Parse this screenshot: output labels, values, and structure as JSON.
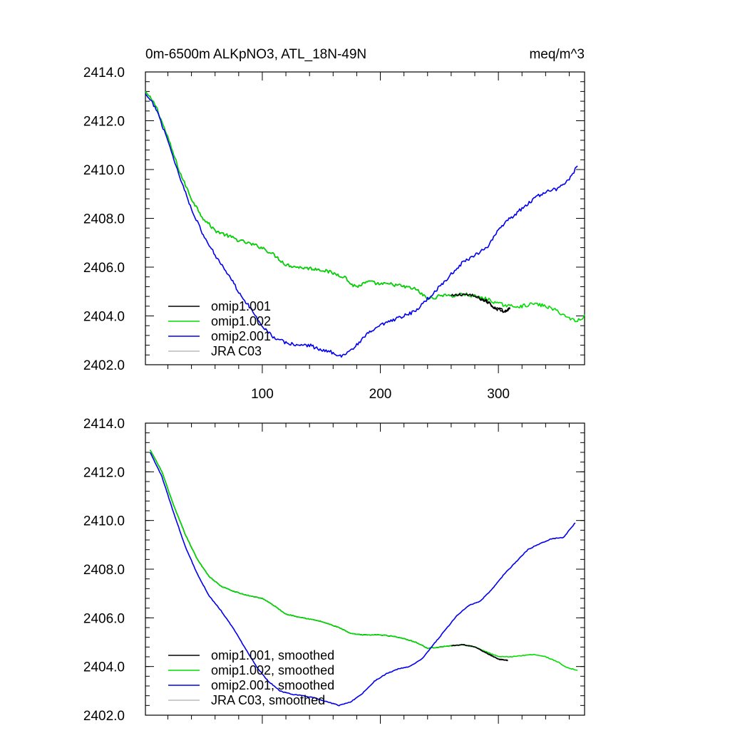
{
  "figure": {
    "title_left": "0m-6500m ALKpNO3, ATL_18N-49N",
    "title_right": "meq/m^3"
  },
  "chart_data": [
    {
      "type": "line",
      "title": "0m-6500m ALKpNO3, ATL_18N-49N",
      "units": "meq/m^3",
      "xlim": [
        1,
        373
      ],
      "ylim": [
        2402.0,
        2414.0
      ],
      "xticks": [
        100,
        200,
        300
      ],
      "xtick_labels": [
        "100",
        "200",
        "300"
      ],
      "yticks": [
        2402,
        2404,
        2406,
        2408,
        2410,
        2412,
        2414
      ],
      "ytick_labels": [
        "2402.0",
        "2404.0",
        "2406.0",
        "2408.0",
        "2410.0",
        "2412.0",
        "2414.0"
      ],
      "legend_position": "bottom-left",
      "series": [
        {
          "name": "omip1.001",
          "color": "#000000",
          "noise": 0.07,
          "points": [
            [
              1,
              2413.2
            ],
            [
              10,
              2412.6
            ],
            [
              20,
              2411.3
            ],
            [
              30,
              2409.9
            ],
            [
              40,
              2408.8
            ],
            [
              50,
              2408.0
            ],
            [
              60,
              2407.5
            ],
            [
              70,
              2407.3
            ],
            [
              80,
              2407.1
            ],
            [
              100,
              2406.8
            ],
            [
              110,
              2406.5
            ],
            [
              120,
              2406.1
            ],
            [
              130,
              2406.0
            ],
            [
              150,
              2405.9
            ],
            [
              170,
              2405.6
            ],
            [
              175,
              2405.3
            ],
            [
              180,
              2405.2
            ],
            [
              190,
              2405.4
            ],
            [
              200,
              2405.3
            ],
            [
              210,
              2405.3
            ],
            [
              220,
              2405.2
            ],
            [
              230,
              2405.1
            ],
            [
              240,
              2404.7
            ],
            [
              250,
              2404.8
            ],
            [
              255,
              2404.9
            ],
            [
              260,
              2404.8
            ],
            [
              270,
              2404.9
            ],
            [
              280,
              2404.8
            ],
            [
              290,
              2404.6
            ],
            [
              298,
              2404.3
            ],
            [
              305,
              2404.2
            ],
            [
              310,
              2404.3
            ]
          ]
        },
        {
          "name": "omip1.002",
          "color": "#00dd00",
          "noise": 0.07,
          "points": [
            [
              1,
              2413.2
            ],
            [
              10,
              2412.6
            ],
            [
              20,
              2411.3
            ],
            [
              30,
              2409.9
            ],
            [
              40,
              2408.8
            ],
            [
              50,
              2408.0
            ],
            [
              60,
              2407.5
            ],
            [
              70,
              2407.3
            ],
            [
              80,
              2407.1
            ],
            [
              100,
              2406.8
            ],
            [
              110,
              2406.5
            ],
            [
              120,
              2406.1
            ],
            [
              130,
              2406.0
            ],
            [
              150,
              2405.9
            ],
            [
              170,
              2405.6
            ],
            [
              175,
              2405.3
            ],
            [
              180,
              2405.2
            ],
            [
              190,
              2405.4
            ],
            [
              200,
              2405.3
            ],
            [
              210,
              2405.3
            ],
            [
              220,
              2405.2
            ],
            [
              230,
              2405.1
            ],
            [
              240,
              2404.7
            ],
            [
              250,
              2404.8
            ],
            [
              255,
              2404.9
            ],
            [
              260,
              2404.8
            ],
            [
              270,
              2404.9
            ],
            [
              280,
              2404.8
            ],
            [
              290,
              2404.7
            ],
            [
              300,
              2404.5
            ],
            [
              310,
              2404.4
            ],
            [
              320,
              2404.4
            ],
            [
              330,
              2404.5
            ],
            [
              340,
              2404.4
            ],
            [
              350,
              2404.2
            ],
            [
              360,
              2403.9
            ],
            [
              367,
              2403.8
            ],
            [
              373,
              2404.0
            ]
          ]
        },
        {
          "name": "omip2.001",
          "color": "#0000ee",
          "noise": 0.07,
          "points": [
            [
              1,
              2413.1
            ],
            [
              10,
              2412.5
            ],
            [
              20,
              2411.2
            ],
            [
              30,
              2409.7
            ],
            [
              40,
              2408.4
            ],
            [
              50,
              2407.3
            ],
            [
              60,
              2406.5
            ],
            [
              70,
              2405.8
            ],
            [
              80,
              2405.0
            ],
            [
              90,
              2404.3
            ],
            [
              100,
              2403.6
            ],
            [
              110,
              2403.1
            ],
            [
              120,
              2402.9
            ],
            [
              130,
              2402.8
            ],
            [
              140,
              2402.8
            ],
            [
              150,
              2402.6
            ],
            [
              160,
              2402.5
            ],
            [
              167,
              2402.35
            ],
            [
              175,
              2402.6
            ],
            [
              180,
              2402.8
            ],
            [
              190,
              2403.3
            ],
            [
              200,
              2403.6
            ],
            [
              210,
              2403.8
            ],
            [
              220,
              2404.0
            ],
            [
              230,
              2404.2
            ],
            [
              240,
              2404.7
            ],
            [
              250,
              2405.2
            ],
            [
              260,
              2405.7
            ],
            [
              270,
              2406.2
            ],
            [
              280,
              2406.5
            ],
            [
              290,
              2406.8
            ],
            [
              300,
              2407.5
            ],
            [
              310,
              2408.0
            ],
            [
              320,
              2408.4
            ],
            [
              330,
              2408.8
            ],
            [
              340,
              2409.1
            ],
            [
              350,
              2409.2
            ],
            [
              360,
              2409.6
            ],
            [
              367,
              2410.15
            ]
          ]
        },
        {
          "name": "JRA C03",
          "color": "#bbbbbb",
          "noise": 0,
          "points": []
        }
      ]
    },
    {
      "type": "line",
      "title": "",
      "units": "meq/m^3",
      "xlim": [
        1,
        373
      ],
      "ylim": [
        2402.0,
        2414.0
      ],
      "xticks": [
        100,
        200,
        300
      ],
      "xtick_labels": [],
      "yticks": [
        2402,
        2404,
        2406,
        2408,
        2410,
        2412,
        2414
      ],
      "ytick_labels": [
        "2402.0",
        "2404.0",
        "2406.0",
        "2408.0",
        "2410.0",
        "2412.0",
        "2414.0"
      ],
      "legend_position": "bottom-left",
      "series": [
        {
          "name": "omip1.001, smoothed",
          "color": "#000000",
          "noise": 0.015,
          "points": [
            [
              5,
              2412.9
            ],
            [
              15,
              2412.0
            ],
            [
              25,
              2410.6
            ],
            [
              35,
              2409.4
            ],
            [
              45,
              2408.4
            ],
            [
              55,
              2407.7
            ],
            [
              65,
              2407.3
            ],
            [
              75,
              2407.1
            ],
            [
              85,
              2406.95
            ],
            [
              100,
              2406.8
            ],
            [
              110,
              2406.5
            ],
            [
              120,
              2406.15
            ],
            [
              130,
              2406.05
            ],
            [
              150,
              2405.85
            ],
            [
              165,
              2405.6
            ],
            [
              175,
              2405.35
            ],
            [
              185,
              2405.3
            ],
            [
              200,
              2405.3
            ],
            [
              210,
              2405.25
            ],
            [
              220,
              2405.15
            ],
            [
              230,
              2405.0
            ],
            [
              240,
              2404.75
            ],
            [
              250,
              2404.8
            ],
            [
              260,
              2404.85
            ],
            [
              270,
              2404.9
            ],
            [
              280,
              2404.8
            ],
            [
              290,
              2404.55
            ],
            [
              300,
              2404.3
            ],
            [
              308,
              2404.25
            ]
          ]
        },
        {
          "name": "omip1.002, smoothed",
          "color": "#00dd00",
          "noise": 0.015,
          "points": [
            [
              5,
              2412.9
            ],
            [
              15,
              2412.0
            ],
            [
              25,
              2410.6
            ],
            [
              35,
              2409.4
            ],
            [
              45,
              2408.4
            ],
            [
              55,
              2407.7
            ],
            [
              65,
              2407.3
            ],
            [
              75,
              2407.1
            ],
            [
              85,
              2406.95
            ],
            [
              100,
              2406.8
            ],
            [
              110,
              2406.5
            ],
            [
              120,
              2406.15
            ],
            [
              130,
              2406.05
            ],
            [
              150,
              2405.85
            ],
            [
              165,
              2405.6
            ],
            [
              175,
              2405.35
            ],
            [
              185,
              2405.3
            ],
            [
              200,
              2405.3
            ],
            [
              210,
              2405.25
            ],
            [
              220,
              2405.15
            ],
            [
              230,
              2405.0
            ],
            [
              240,
              2404.75
            ],
            [
              250,
              2404.8
            ],
            [
              260,
              2404.85
            ],
            [
              270,
              2404.9
            ],
            [
              280,
              2404.8
            ],
            [
              290,
              2404.6
            ],
            [
              300,
              2404.4
            ],
            [
              310,
              2404.4
            ],
            [
              320,
              2404.45
            ],
            [
              330,
              2404.5
            ],
            [
              340,
              2404.4
            ],
            [
              350,
              2404.2
            ],
            [
              358,
              2403.95
            ],
            [
              367,
              2403.85
            ]
          ]
        },
        {
          "name": "omip2.001, smoothed",
          "color": "#0000ee",
          "noise": 0.015,
          "points": [
            [
              5,
              2412.8
            ],
            [
              15,
              2411.8
            ],
            [
              25,
              2410.3
            ],
            [
              35,
              2408.9
            ],
            [
              45,
              2407.8
            ],
            [
              55,
              2406.9
            ],
            [
              65,
              2406.3
            ],
            [
              75,
              2405.6
            ],
            [
              85,
              2404.8
            ],
            [
              95,
              2404.0
            ],
            [
              105,
              2403.4
            ],
            [
              115,
              2403.0
            ],
            [
              125,
              2402.85
            ],
            [
              135,
              2402.8
            ],
            [
              145,
              2402.7
            ],
            [
              155,
              2402.55
            ],
            [
              165,
              2402.4
            ],
            [
              175,
              2402.55
            ],
            [
              185,
              2402.9
            ],
            [
              195,
              2403.4
            ],
            [
              205,
              2403.7
            ],
            [
              215,
              2403.9
            ],
            [
              225,
              2404.0
            ],
            [
              235,
              2404.3
            ],
            [
              245,
              2404.9
            ],
            [
              255,
              2405.5
            ],
            [
              265,
              2406.1
            ],
            [
              275,
              2406.5
            ],
            [
              285,
              2406.7
            ],
            [
              295,
              2407.2
            ],
            [
              305,
              2407.8
            ],
            [
              315,
              2408.3
            ],
            [
              325,
              2408.8
            ],
            [
              335,
              2409.05
            ],
            [
              345,
              2409.25
            ],
            [
              355,
              2409.3
            ],
            [
              365,
              2409.9
            ]
          ]
        },
        {
          "name": "JRA C03, smoothed",
          "color": "#bbbbbb",
          "noise": 0,
          "points": []
        }
      ]
    }
  ]
}
